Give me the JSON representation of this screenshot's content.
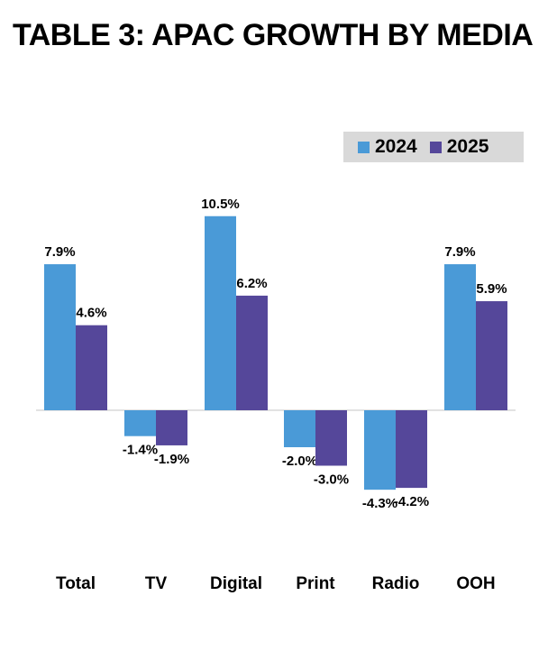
{
  "chart_data": {
    "type": "bar",
    "title": "TABLE 3: APAC GROWTH BY MEDIA",
    "categories": [
      "Total",
      "TV",
      "Digital",
      "Print",
      "Radio",
      "OOH"
    ],
    "series": [
      {
        "name": "2024",
        "color": "#4a9ad7",
        "values": [
          7.9,
          -1.4,
          10.5,
          -2.0,
          -4.3,
          7.9
        ],
        "labels": [
          "7.9%",
          "-1.4%",
          "10.5%",
          "-2.0%",
          "-4.3%",
          "7.9%"
        ]
      },
      {
        "name": "2025",
        "color": "#55479a",
        "values": [
          4.6,
          -1.9,
          6.2,
          -3.0,
          -4.2,
          5.9
        ],
        "labels": [
          "4.6%",
          "-1.9%",
          "6.2%",
          "-3.0%",
          "-4.2%",
          "5.9%"
        ]
      }
    ],
    "xlabel": "",
    "ylabel": "",
    "ylim": [
      -5,
      12
    ],
    "legend": {
      "position": "top-right",
      "background": "#d9d9d9"
    },
    "grid": false,
    "baseline_color": "#d9d9d9"
  }
}
